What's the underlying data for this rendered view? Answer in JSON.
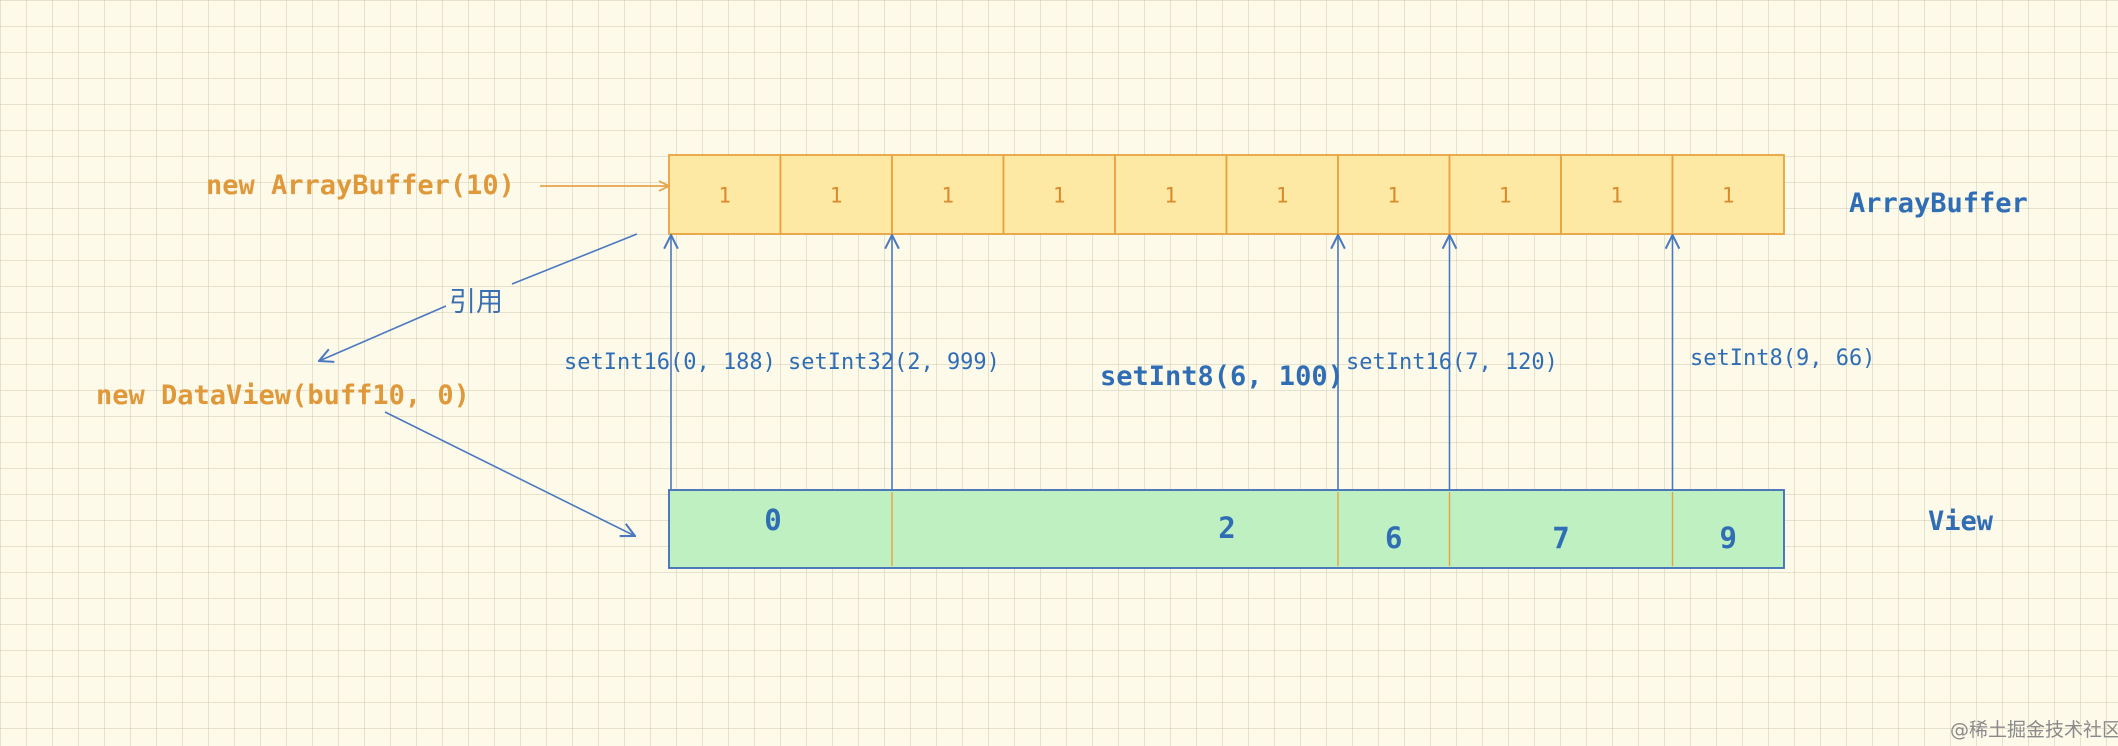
{
  "buffer": {
    "constructor_label": "new ArrayBuffer(10)",
    "title": "ArrayBuffer",
    "cells": [
      "1",
      "1",
      "1",
      "1",
      "1",
      "1",
      "1",
      "1",
      "1",
      "1"
    ]
  },
  "reference_label": "引用",
  "dataview": {
    "constructor_label": "new DataView(buff10, 0)",
    "title": "View",
    "segments": [
      {
        "label": "0",
        "start": 0,
        "end": 2
      },
      {
        "label": "2",
        "start": 2,
        "end": 6
      },
      {
        "label": "6",
        "start": 6,
        "end": 7
      },
      {
        "label": "7",
        "start": 7,
        "end": 9
      },
      {
        "label": "9",
        "start": 9,
        "end": 10
      }
    ]
  },
  "operations": [
    {
      "label": "setInt16(0, 188)",
      "byte": 0
    },
    {
      "label": "setInt32(2, 999)",
      "byte": 2
    },
    {
      "label": "setInt8(6, 100)",
      "byte": 6
    },
    {
      "label": "setInt16(7, 120)",
      "byte": 7
    },
    {
      "label": "setInt8(9, 66)",
      "byte": 9
    }
  ],
  "watermark": "@稀土掘金技术社区",
  "colors": {
    "buffer_fill": "#fde8a4",
    "buffer_stroke": "#e8a340",
    "view_fill": "#bff0c2",
    "view_stroke": "#3e6cb7",
    "arrow_orange": "#e6a34a",
    "arrow_blue": "#4a79bf"
  }
}
